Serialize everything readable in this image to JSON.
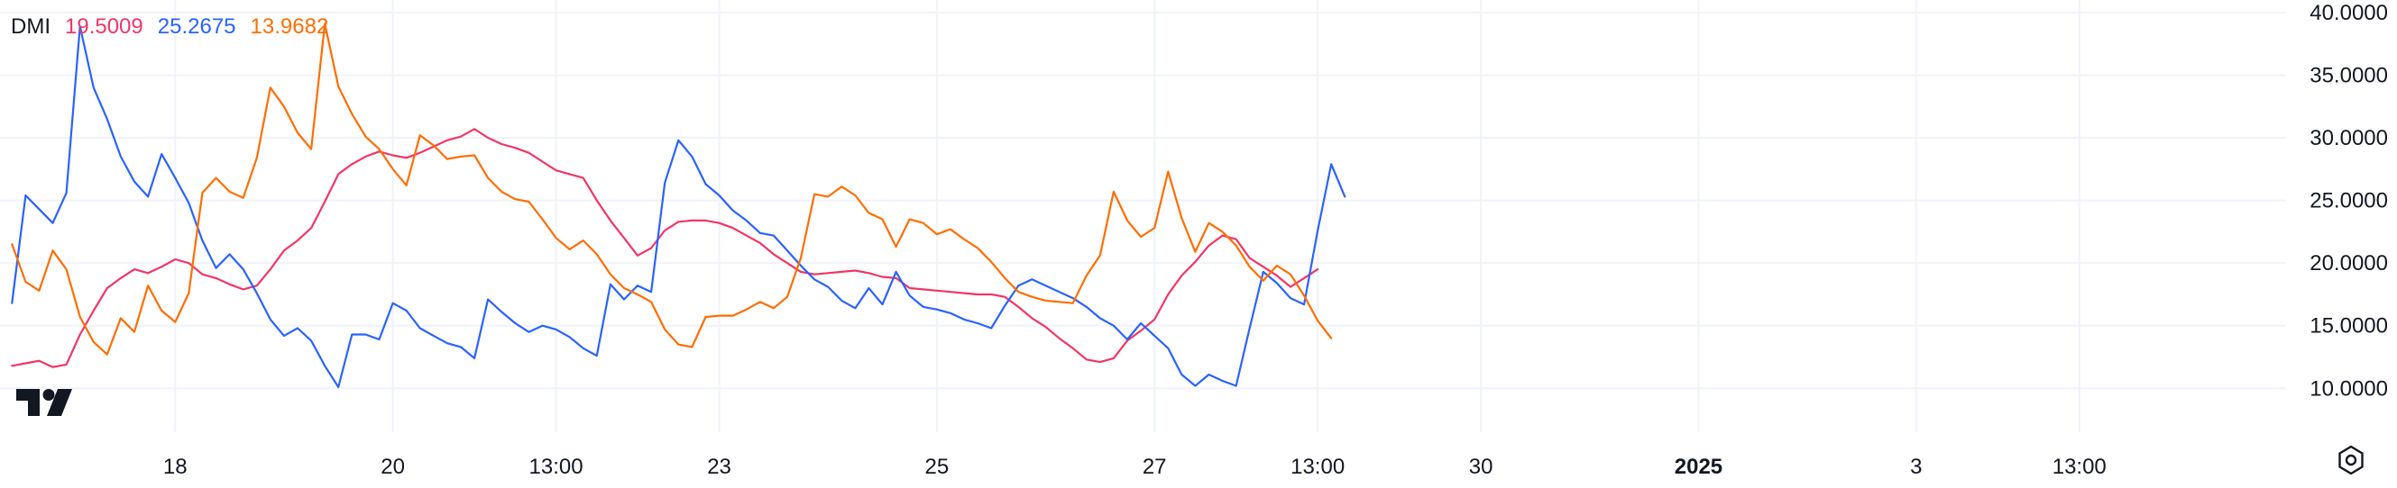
{
  "legend": {
    "indicator": "DMI",
    "values": [
      "19.5009",
      "25.2675",
      "13.9682"
    ]
  },
  "colors": {
    "adx": "#f23566",
    "plus_di": "#2962ff",
    "minus_di": "#ff6d00",
    "grid": "#f0f3fa",
    "text": "#131722"
  },
  "icons": [
    "tradingview-logo-icon",
    "gear-icon"
  ],
  "chart_data": {
    "type": "line",
    "ylim": [
      6.5,
      41
    ],
    "y_ticks": [
      "40.0000",
      "35.0000",
      "30.0000",
      "25.0000",
      "20.0000",
      "15.0000",
      "10.0000"
    ],
    "y_tick_values": [
      40,
      35,
      30,
      25,
      20,
      15,
      10
    ],
    "x_ticks": [
      {
        "label": "18",
        "x": 1.5,
        "bold": false
      },
      {
        "label": "20",
        "x": 3.5,
        "bold": false
      },
      {
        "label": "13:00",
        "x": 5.0,
        "bold": false
      },
      {
        "label": "23",
        "x": 6.5,
        "bold": false
      },
      {
        "label": "25",
        "x": 8.5,
        "bold": false
      },
      {
        "label": "27",
        "x": 10.5,
        "bold": false
      },
      {
        "label": "13:00",
        "x": 12.0,
        "bold": false
      },
      {
        "label": "30",
        "x": 13.5,
        "bold": false
      },
      {
        "label": "2025",
        "x": 15.5,
        "bold": true
      },
      {
        "label": "3",
        "x": 17.5,
        "bold": false
      },
      {
        "label": "13:00",
        "x": 19.0,
        "bold": false
      }
    ],
    "xlim": [
      -0.11,
      20.9
    ],
    "x_step": 0.125,
    "series": [
      {
        "color": "#f23566",
        "values": [
          11.8,
          12.0,
          12.2,
          11.7,
          11.9,
          14.3,
          16.2,
          18.0,
          18.8,
          19.5,
          19.2,
          19.7,
          20.3,
          20.0,
          19.1,
          18.8,
          18.3,
          17.9,
          18.2,
          19.5,
          21.0,
          21.8,
          22.8,
          24.9,
          27.1,
          27.9,
          28.5,
          28.9,
          28.6,
          28.4,
          28.8,
          29.3,
          29.8,
          30.1,
          30.7,
          30.0,
          29.5,
          29.2,
          28.8,
          28.1,
          27.4,
          27.1,
          26.8,
          25.0,
          23.4,
          22.0,
          20.6,
          21.2,
          22.6,
          23.3,
          23.4,
          23.4,
          23.2,
          22.8,
          22.2,
          21.6,
          20.7,
          20.0,
          19.3,
          19.1,
          19.2,
          19.3,
          19.4,
          19.2,
          18.9,
          18.8,
          18.0,
          17.9,
          17.8,
          17.7,
          17.6,
          17.5,
          17.5,
          17.3,
          16.5,
          15.6,
          14.9,
          14.0,
          13.2,
          12.3,
          12.1,
          12.4,
          13.8,
          14.6,
          15.5,
          17.5,
          19.0,
          20.1,
          21.4,
          22.2,
          21.9,
          20.4,
          19.7,
          19.0,
          18.1,
          18.8,
          19.5
        ]
      },
      {
        "color": "#2962ff",
        "values": [
          16.8,
          25.4,
          24.3,
          23.2,
          25.6,
          38.9,
          34.0,
          31.5,
          28.5,
          26.5,
          25.3,
          28.7,
          26.8,
          24.8,
          21.8,
          19.6,
          20.7,
          19.5,
          17.6,
          15.5,
          14.2,
          14.8,
          13.8,
          11.8,
          10.1,
          14.3,
          14.3,
          13.9,
          16.8,
          16.2,
          14.8,
          14.2,
          13.6,
          13.3,
          12.4,
          17.1,
          16.1,
          15.2,
          14.5,
          15.0,
          14.7,
          14.1,
          13.2,
          12.6,
          18.3,
          17.1,
          18.2,
          17.7,
          26.4,
          29.8,
          28.5,
          26.3,
          25.4,
          24.2,
          23.4,
          22.4,
          22.2,
          21.0,
          19.8,
          18.7,
          18.1,
          17.0,
          16.4,
          18.0,
          16.7,
          19.3,
          17.4,
          16.5,
          16.3,
          16.0,
          15.5,
          15.2,
          14.8,
          16.6,
          18.2,
          18.7,
          18.2,
          17.7,
          17.2,
          16.5,
          15.6,
          15.0,
          13.9,
          15.2,
          14.2,
          13.2,
          11.1,
          10.2,
          11.1,
          10.6,
          10.2,
          14.8,
          19.3,
          18.4,
          17.2,
          16.7,
          22.6,
          27.9,
          25.3
        ]
      },
      {
        "color": "#ff6d00",
        "values": [
          21.5,
          18.5,
          17.8,
          21.0,
          19.5,
          15.7,
          13.7,
          12.7,
          15.6,
          14.5,
          18.2,
          16.2,
          15.3,
          17.6,
          25.6,
          26.8,
          25.7,
          25.2,
          28.4,
          34.0,
          32.5,
          30.4,
          29.1,
          39.1,
          34.1,
          31.9,
          30.1,
          29.1,
          27.5,
          26.2,
          30.2,
          29.4,
          28.3,
          28.5,
          28.6,
          26.8,
          25.7,
          25.1,
          24.9,
          23.5,
          22.0,
          21.1,
          21.8,
          20.7,
          19.1,
          18.0,
          17.5,
          16.9,
          14.7,
          13.5,
          13.3,
          15.7,
          15.8,
          15.8,
          16.3,
          16.9,
          16.4,
          17.3,
          20.4,
          25.5,
          25.3,
          26.1,
          25.4,
          24.0,
          23.5,
          21.3,
          23.5,
          23.2,
          22.3,
          22.7,
          21.9,
          21.2,
          20.1,
          18.8,
          17.7,
          17.3,
          17.0,
          16.9,
          16.8,
          19.0,
          20.6,
          25.7,
          23.4,
          22.1,
          22.8,
          27.3,
          23.6,
          20.9,
          23.2,
          22.5,
          21.4,
          19.7,
          18.6,
          19.8,
          19.1,
          17.4,
          15.4,
          14.0
        ]
      }
    ]
  }
}
